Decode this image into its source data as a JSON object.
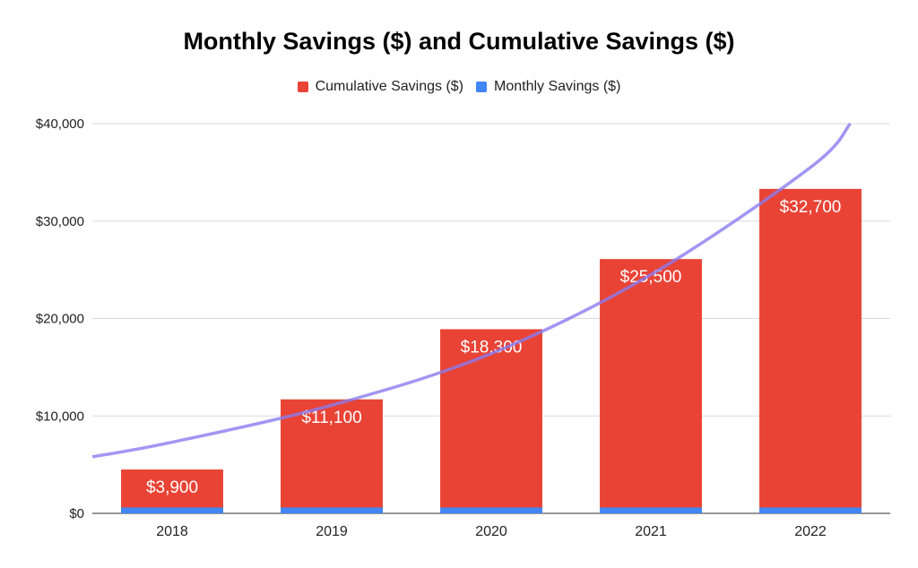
{
  "chart_data": {
    "type": "bar",
    "stacked": true,
    "title": "Monthly Savings ($) and Cumulative Savings ($)",
    "xlabel": "",
    "ylabel": "",
    "categories": [
      "2018",
      "2019",
      "2020",
      "2021",
      "2022"
    ],
    "series": [
      {
        "name": "Cumulative Savings ($)",
        "color": "#e94335",
        "values": [
          3900,
          11100,
          18300,
          25500,
          32700
        ],
        "data_labels": [
          "$3,900",
          "$11,100",
          "$18,300",
          "$25,500",
          "$32,700"
        ]
      },
      {
        "name": "Monthly Savings ($)",
        "color": "#4285f4",
        "values": [
          600,
          600,
          600,
          600,
          600
        ]
      }
    ],
    "trendline": {
      "type": "exponential",
      "color": "#8a7cf0",
      "points": [
        [
          2017.5,
          5800
        ],
        [
          2018,
          7300
        ],
        [
          2019,
          11100
        ],
        [
          2020,
          16400
        ],
        [
          2021,
          24500
        ],
        [
          2022,
          35500
        ],
        [
          2022.25,
          40000
        ]
      ]
    },
    "ylim": [
      0,
      40000
    ],
    "yticks": [
      0,
      10000,
      20000,
      30000,
      40000
    ],
    "ytick_labels": [
      "$0",
      "$10,000",
      "$20,000",
      "$30,000",
      "$40,000"
    ],
    "grid": true,
    "legend_position": "top"
  }
}
